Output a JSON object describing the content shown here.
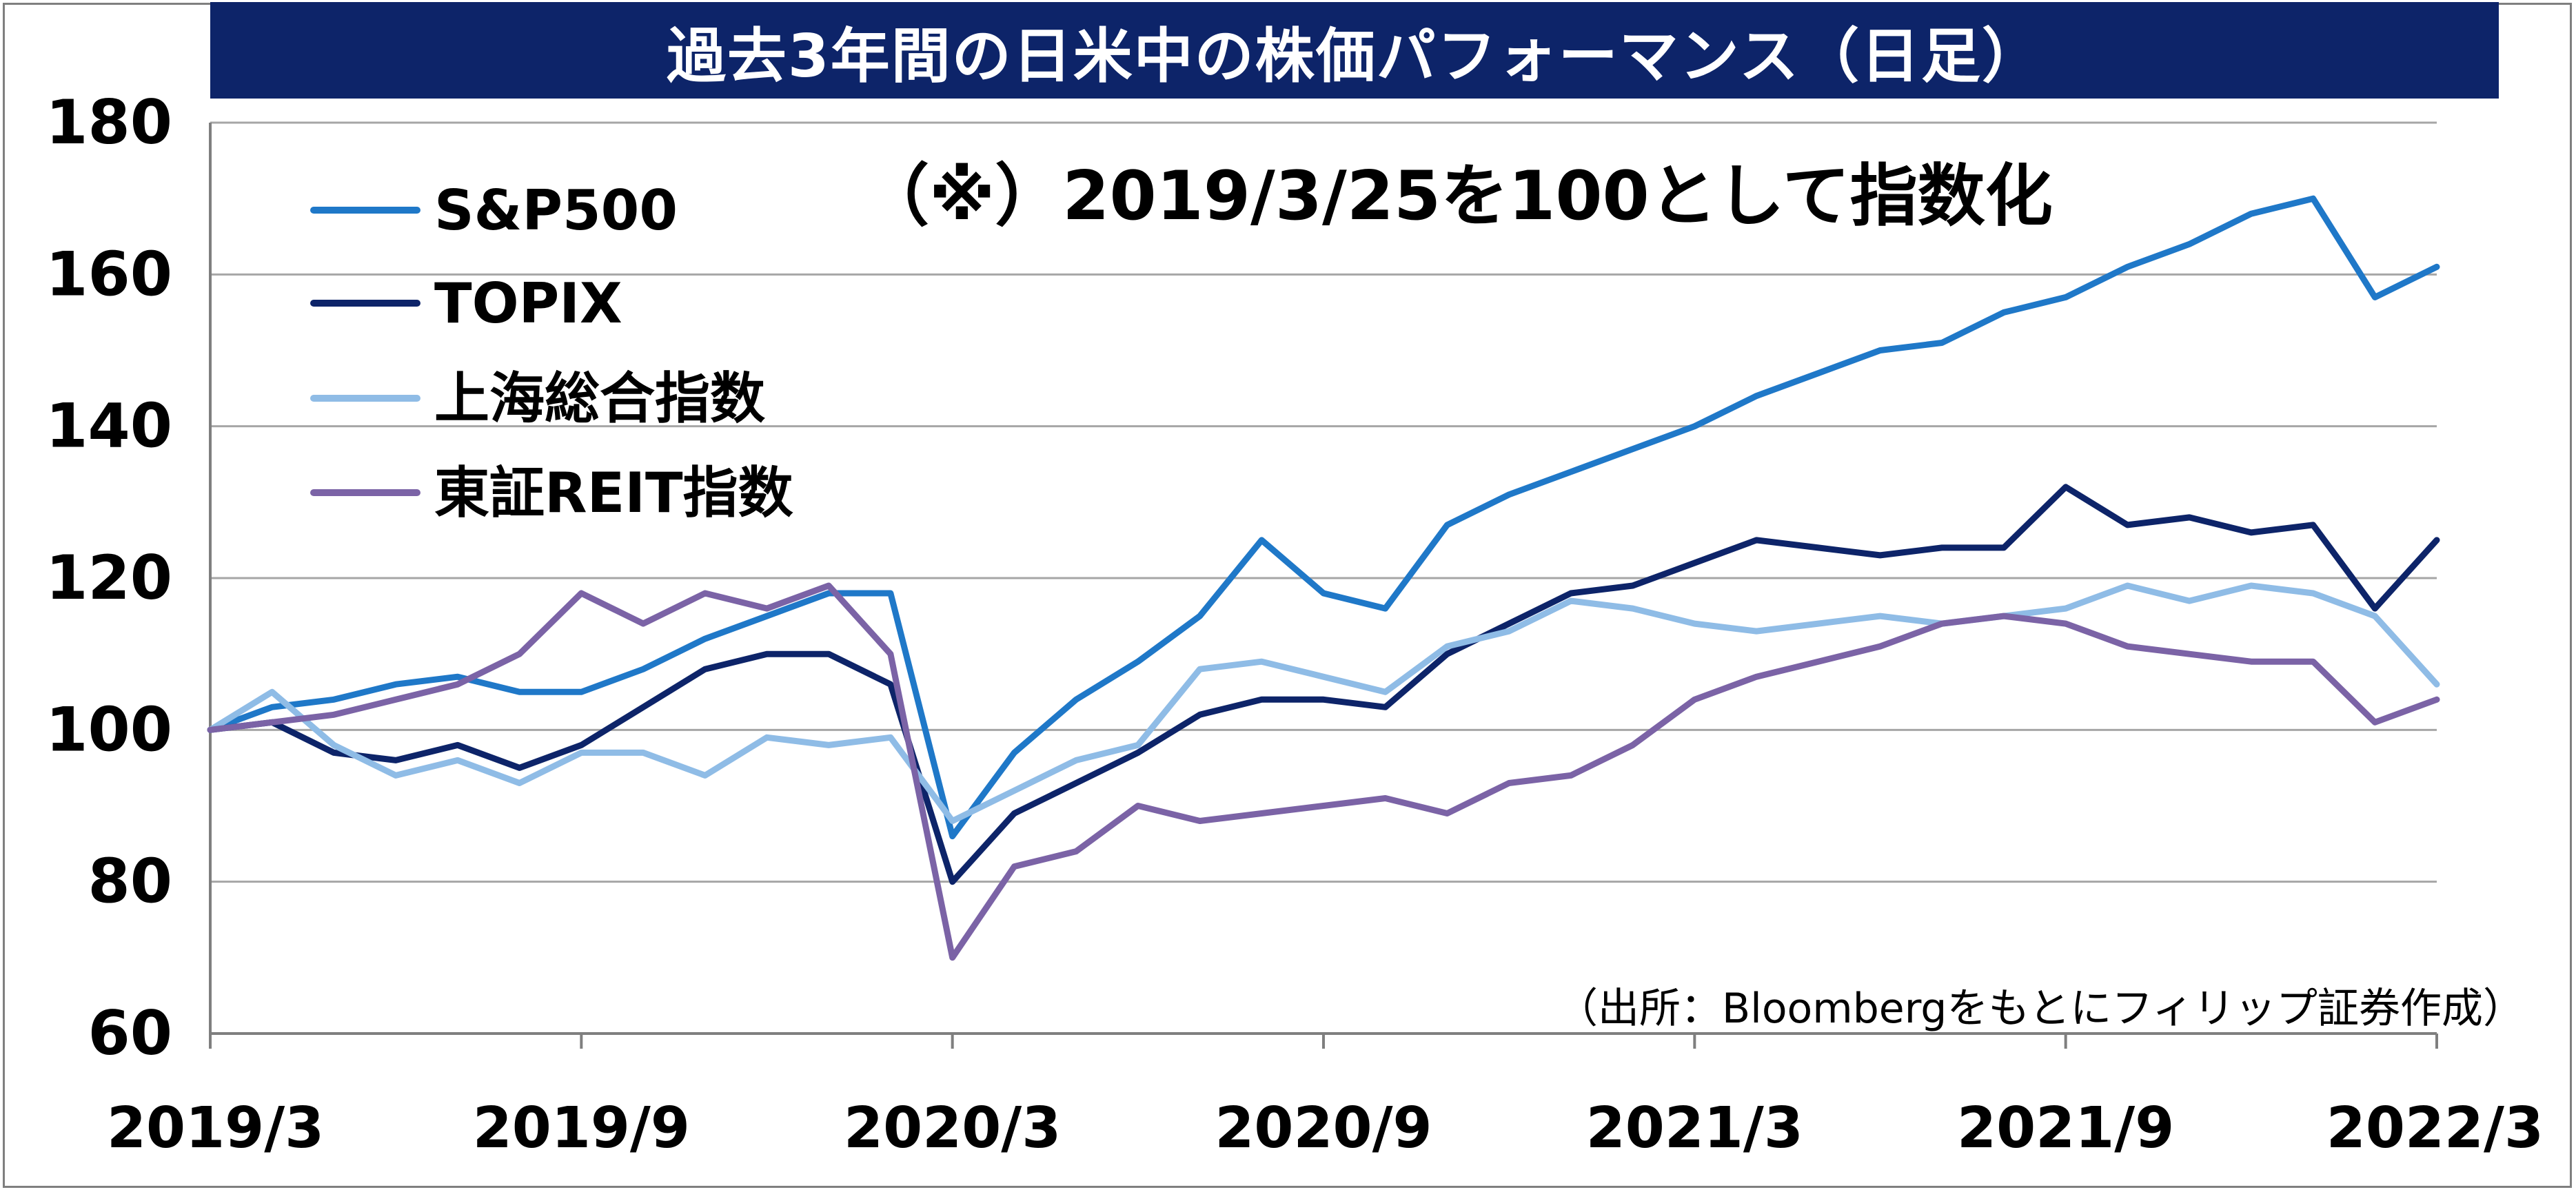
{
  "chart_data": {
    "type": "line",
    "title": "過去3年間の日米中の株価パフォーマンス（日足）",
    "annotation": "（※）2019/3/25を100として指数化",
    "source": "（出所：Bloombergをもとにフィリップ証券作成）",
    "xlabel": "",
    "ylabel": "",
    "ylim": [
      60,
      180
    ],
    "yticks": [
      60,
      80,
      100,
      120,
      140,
      160,
      180
    ],
    "xticks": [
      "2019/3",
      "2019/9",
      "2020/3",
      "2020/9",
      "2021/3",
      "2021/9",
      "2022/3"
    ],
    "grid": "horizontal",
    "legend_position": "top-left",
    "x": [
      "2019/3",
      "2019/4",
      "2019/5",
      "2019/6",
      "2019/7",
      "2019/8",
      "2019/9",
      "2019/10",
      "2019/11",
      "2019/12",
      "2020/1",
      "2020/2",
      "2020/3",
      "2020/4",
      "2020/5",
      "2020/6",
      "2020/7",
      "2020/8",
      "2020/9",
      "2020/10",
      "2020/11",
      "2020/12",
      "2021/1",
      "2021/2",
      "2021/3",
      "2021/4",
      "2021/5",
      "2021/6",
      "2021/7",
      "2021/8",
      "2021/9",
      "2021/10",
      "2021/11",
      "2021/12",
      "2022/1",
      "2022/2",
      "2022/3"
    ],
    "series": [
      {
        "name": "S&P500",
        "color": "#1f78c8",
        "values": [
          100,
          103,
          104,
          106,
          107,
          105,
          105,
          108,
          112,
          115,
          118,
          118,
          86,
          97,
          104,
          109,
          115,
          125,
          118,
          116,
          127,
          131,
          134,
          137,
          140,
          144,
          147,
          150,
          151,
          155,
          157,
          161,
          164,
          168,
          170,
          157,
          161
        ]
      },
      {
        "name": "TOPIX",
        "color": "#0d2469",
        "values": [
          100,
          101,
          97,
          96,
          98,
          95,
          98,
          103,
          108,
          110,
          110,
          106,
          80,
          89,
          93,
          97,
          102,
          104,
          104,
          103,
          110,
          114,
          118,
          119,
          122,
          125,
          124,
          123,
          124,
          124,
          132,
          127,
          128,
          126,
          127,
          116,
          125
        ]
      },
      {
        "name": "上海総合指数",
        "color": "#8fbce6",
        "values": [
          100,
          105,
          98,
          94,
          96,
          93,
          97,
          97,
          94,
          99,
          98,
          99,
          88,
          92,
          96,
          98,
          108,
          109,
          107,
          105,
          111,
          113,
          117,
          116,
          114,
          113,
          114,
          115,
          114,
          115,
          116,
          119,
          117,
          119,
          118,
          115,
          106
        ]
      },
      {
        "name": "東証REIT指数",
        "color": "#7b63a6",
        "values": [
          100,
          101,
          102,
          104,
          106,
          110,
          118,
          114,
          118,
          116,
          119,
          110,
          70,
          82,
          84,
          90,
          88,
          89,
          90,
          91,
          89,
          93,
          94,
          98,
          104,
          107,
          109,
          111,
          114,
          115,
          114,
          111,
          110,
          109,
          109,
          101,
          104
        ]
      }
    ]
  }
}
